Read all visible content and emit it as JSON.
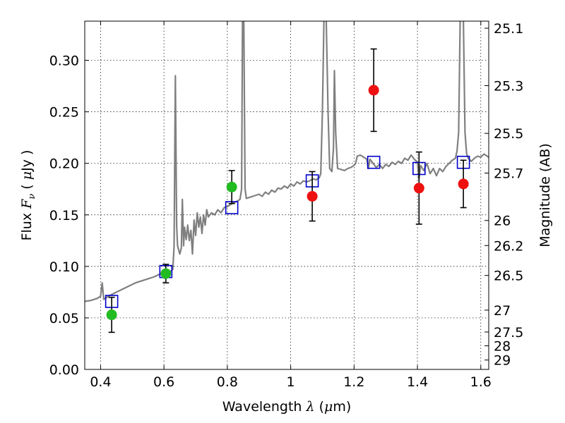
{
  "chart_data": {
    "type": "scatter",
    "xlabel": {
      "pre": "Wavelength  ",
      "sym": "λ",
      "post": " (",
      "mu": "μ",
      "unit": "m)"
    },
    "ylabel": {
      "pre": "Flux  ",
      "sym": "F",
      "sub": "ν",
      "post": "  ( ",
      "mu": "μ",
      "unit": "Jy )"
    },
    "ylabel_right": "Magnitude (AB)",
    "xlim": [
      0.35,
      1.625
    ],
    "ylim": [
      0.0,
      0.338
    ],
    "grid": true,
    "x_ticks": [
      {
        "v": 0.4,
        "label": "0.4"
      },
      {
        "v": 0.6,
        "label": "0.6"
      },
      {
        "v": 0.8,
        "label": "0.8"
      },
      {
        "v": 1.0,
        "label": "1"
      },
      {
        "v": 1.2,
        "label": "1.2"
      },
      {
        "v": 1.4,
        "label": "1.4"
      },
      {
        "v": 1.6,
        "label": "1.6"
      }
    ],
    "y_ticks": [
      {
        "v": 0.0,
        "label": "0.00"
      },
      {
        "v": 0.05,
        "label": "0.05"
      },
      {
        "v": 0.1,
        "label": "0.10"
      },
      {
        "v": 0.15,
        "label": "0.15"
      },
      {
        "v": 0.2,
        "label": "0.20"
      },
      {
        "v": 0.25,
        "label": "0.25"
      },
      {
        "v": 0.3,
        "label": "0.30"
      }
    ],
    "y_right_ticks": [
      {
        "mag": 25.1,
        "label": "25.1"
      },
      {
        "mag": 25.3,
        "label": "25.3"
      },
      {
        "mag": 25.5,
        "label": "25.5"
      },
      {
        "mag": 25.7,
        "label": "25.7"
      },
      {
        "mag": 26.0,
        "label": "26"
      },
      {
        "mag": 26.2,
        "label": "26.2"
      },
      {
        "mag": 26.5,
        "label": "26.5"
      },
      {
        "mag": 27.0,
        "label": "27"
      },
      {
        "mag": 27.5,
        "label": "27.5"
      },
      {
        "mag": 28.0,
        "label": "28"
      },
      {
        "mag": 29.0,
        "label": "29"
      }
    ],
    "series": [
      {
        "type": "line",
        "color": "#808080",
        "points": [
          [
            0.35,
            0.066
          ],
          [
            0.37,
            0.067
          ],
          [
            0.38,
            0.068
          ],
          [
            0.39,
            0.069
          ],
          [
            0.4,
            0.071
          ],
          [
            0.405,
            0.084
          ],
          [
            0.41,
            0.068
          ],
          [
            0.43,
            0.072
          ],
          [
            0.45,
            0.075
          ],
          [
            0.47,
            0.078
          ],
          [
            0.49,
            0.081
          ],
          [
            0.51,
            0.084
          ],
          [
            0.53,
            0.086
          ],
          [
            0.55,
            0.088
          ],
          [
            0.57,
            0.09
          ],
          [
            0.59,
            0.093
          ],
          [
            0.6,
            0.094
          ],
          [
            0.61,
            0.096
          ],
          [
            0.62,
            0.095
          ],
          [
            0.628,
            0.097
          ],
          [
            0.632,
            0.12
          ],
          [
            0.636,
            0.285
          ],
          [
            0.64,
            0.14
          ],
          [
            0.643,
            0.12
          ],
          [
            0.65,
            0.112
          ],
          [
            0.655,
            0.118
          ],
          [
            0.658,
            0.165
          ],
          [
            0.662,
            0.12
          ],
          [
            0.665,
            0.138
          ],
          [
            0.67,
            0.126
          ],
          [
            0.675,
            0.14
          ],
          [
            0.68,
            0.125
          ],
          [
            0.685,
            0.135
          ],
          [
            0.69,
            0.112
          ],
          [
            0.695,
            0.145
          ],
          [
            0.7,
            0.13
          ],
          [
            0.705,
            0.152
          ],
          [
            0.71,
            0.138
          ],
          [
            0.715,
            0.148
          ],
          [
            0.72,
            0.132
          ],
          [
            0.725,
            0.15
          ],
          [
            0.73,
            0.14
          ],
          [
            0.735,
            0.155
          ],
          [
            0.74,
            0.148
          ],
          [
            0.75,
            0.152
          ],
          [
            0.76,
            0.15
          ],
          [
            0.77,
            0.155
          ],
          [
            0.78,
            0.152
          ],
          [
            0.79,
            0.157
          ],
          [
            0.8,
            0.158
          ],
          [
            0.81,
            0.16
          ],
          [
            0.82,
            0.162
          ],
          [
            0.83,
            0.163
          ],
          [
            0.84,
            0.165
          ],
          [
            0.845,
            0.175
          ],
          [
            0.848,
            0.34
          ],
          [
            0.852,
            0.34
          ],
          [
            0.856,
            0.175
          ],
          [
            0.86,
            0.166
          ],
          [
            0.87,
            0.167
          ],
          [
            0.88,
            0.168
          ],
          [
            0.89,
            0.169
          ],
          [
            0.9,
            0.17
          ],
          [
            0.91,
            0.168
          ],
          [
            0.92,
            0.172
          ],
          [
            0.93,
            0.17
          ],
          [
            0.94,
            0.174
          ],
          [
            0.95,
            0.172
          ],
          [
            0.96,
            0.176
          ],
          [
            0.97,
            0.175
          ],
          [
            0.98,
            0.178
          ],
          [
            0.99,
            0.176
          ],
          [
            1.0,
            0.18
          ],
          [
            1.01,
            0.178
          ],
          [
            1.02,
            0.182
          ],
          [
            1.03,
            0.18
          ],
          [
            1.04,
            0.183
          ],
          [
            1.05,
            0.182
          ],
          [
            1.06,
            0.183
          ],
          [
            1.07,
            0.185
          ],
          [
            1.08,
            0.184
          ],
          [
            1.09,
            0.186
          ],
          [
            1.095,
            0.19
          ],
          [
            1.1,
            0.25
          ],
          [
            1.105,
            0.34
          ],
          [
            1.112,
            0.34
          ],
          [
            1.118,
            0.25
          ],
          [
            1.123,
            0.195
          ],
          [
            1.13,
            0.192
          ],
          [
            1.135,
            0.215
          ],
          [
            1.138,
            0.29
          ],
          [
            1.142,
            0.23
          ],
          [
            1.148,
            0.195
          ],
          [
            1.16,
            0.194
          ],
          [
            1.17,
            0.193
          ],
          [
            1.18,
            0.195
          ],
          [
            1.19,
            0.196
          ],
          [
            1.2,
            0.198
          ],
          [
            1.205,
            0.2
          ],
          [
            1.21,
            0.207
          ],
          [
            1.22,
            0.208
          ],
          [
            1.23,
            0.206
          ],
          [
            1.24,
            0.204
          ],
          [
            1.245,
            0.195
          ],
          [
            1.25,
            0.204
          ],
          [
            1.26,
            0.2
          ],
          [
            1.27,
            0.196
          ],
          [
            1.28,
            0.199
          ],
          [
            1.29,
            0.195
          ],
          [
            1.3,
            0.199
          ],
          [
            1.31,
            0.197
          ],
          [
            1.32,
            0.201
          ],
          [
            1.33,
            0.199
          ],
          [
            1.34,
            0.202
          ],
          [
            1.35,
            0.2
          ],
          [
            1.36,
            0.205
          ],
          [
            1.37,
            0.203
          ],
          [
            1.38,
            0.208
          ],
          [
            1.39,
            0.204
          ],
          [
            1.4,
            0.201
          ],
          [
            1.405,
            0.185
          ],
          [
            1.41,
            0.198
          ],
          [
            1.42,
            0.193
          ],
          [
            1.43,
            0.2
          ],
          [
            1.44,
            0.19
          ],
          [
            1.45,
            0.195
          ],
          [
            1.46,
            0.188
          ],
          [
            1.47,
            0.195
          ],
          [
            1.48,
            0.192
          ],
          [
            1.49,
            0.197
          ],
          [
            1.5,
            0.2
          ],
          [
            1.51,
            0.203
          ],
          [
            1.52,
            0.205
          ],
          [
            1.525,
            0.212
          ],
          [
            1.53,
            0.23
          ],
          [
            1.535,
            0.34
          ],
          [
            1.545,
            0.34
          ],
          [
            1.55,
            0.23
          ],
          [
            1.555,
            0.21
          ],
          [
            1.56,
            0.205
          ],
          [
            1.57,
            0.202
          ],
          [
            1.58,
            0.205
          ],
          [
            1.59,
            0.207
          ],
          [
            1.6,
            0.206
          ],
          [
            1.61,
            0.209
          ],
          [
            1.62,
            0.207
          ],
          [
            1.625,
            0.206
          ]
        ]
      },
      {
        "type": "square_markers",
        "color": "#0000cc",
        "points": [
          [
            0.435,
            0.066
          ],
          [
            0.606,
            0.095
          ],
          [
            0.814,
            0.157
          ],
          [
            1.068,
            0.183
          ],
          [
            1.262,
            0.201
          ],
          [
            1.405,
            0.195
          ],
          [
            1.545,
            0.201
          ]
        ]
      },
      {
        "type": "circle_markers",
        "color": "#22bb22",
        "points": [
          {
            "x": 0.435,
            "y": 0.053,
            "err": 0.017
          },
          {
            "x": 0.606,
            "y": 0.093,
            "err": 0.009
          },
          {
            "x": 0.814,
            "y": 0.177,
            "err": 0.016
          }
        ]
      },
      {
        "type": "circle_markers",
        "color": "#ee1111",
        "points": [
          {
            "x": 1.068,
            "y": 0.168,
            "err": 0.024
          },
          {
            "x": 1.262,
            "y": 0.271,
            "err": 0.04
          },
          {
            "x": 1.405,
            "y": 0.176,
            "err": 0.035
          },
          {
            "x": 1.545,
            "y": 0.18,
            "err": 0.023
          }
        ]
      }
    ]
  }
}
